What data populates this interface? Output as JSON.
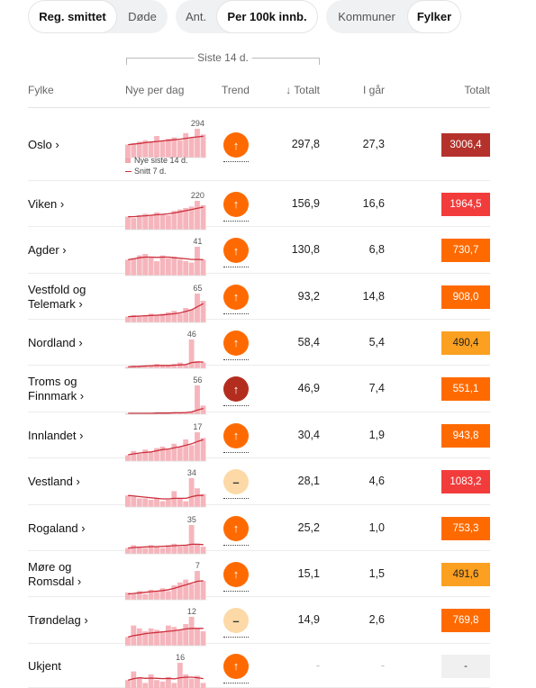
{
  "toggles": [
    {
      "options": [
        "Reg. smittet",
        "Døde"
      ],
      "active": 0,
      "widths": [
        99,
        56
      ]
    },
    {
      "options": [
        "Ant.",
        "Per 100k innb."
      ],
      "active": 1,
      "widths": [
        45,
        113
      ]
    },
    {
      "options": [
        "Kommuner",
        "Fylker"
      ],
      "active": 1,
      "widths": [
        90,
        60
      ]
    }
  ],
  "bracket_label": "Siste 14 d.",
  "headers": {
    "fylke": "Fylke",
    "nye": "Nye per dag",
    "trend": "Trend",
    "totalt_sort": "↓ Totalt",
    "igaar": "I går",
    "totalt": "Totalt"
  },
  "legend": {
    "bars": "Nye siste 14 d.",
    "line": "Snitt 7 d."
  },
  "trend_colors": {
    "up": "#ff6a00",
    "up_strong": "#b32d1f",
    "flat": "#fcd9a6"
  },
  "rows": [
    {
      "name": "Oslo ›",
      "max": 294,
      "trend": "up",
      "totalt": "297,8",
      "igaar": "27,3",
      "total": "3006,4",
      "total_color": "#b4322b",
      "bars": [
        0.45,
        0.5,
        0.55,
        0.6,
        0.55,
        0.75,
        0.6,
        0.65,
        0.7,
        0.6,
        0.85,
        0.7,
        1.0,
        0.8
      ],
      "line": [
        0.45,
        0.47,
        0.49,
        0.52,
        0.54,
        0.56,
        0.58,
        0.6,
        0.62,
        0.64,
        0.67,
        0.7,
        0.72,
        0.74
      ]
    },
    {
      "name": "Viken ›",
      "max": 220,
      "trend": "up",
      "totalt": "156,9",
      "igaar": "16,6",
      "total": "1964,5",
      "total_color": "#f23c3c",
      "bars": [
        0.45,
        0.4,
        0.5,
        0.55,
        0.5,
        0.6,
        0.55,
        0.5,
        0.65,
        0.7,
        0.75,
        0.8,
        1.0,
        0.85
      ],
      "line": [
        0.45,
        0.45,
        0.47,
        0.48,
        0.5,
        0.52,
        0.53,
        0.55,
        0.58,
        0.62,
        0.66,
        0.7,
        0.74,
        0.78
      ]
    },
    {
      "name": "Agder ›",
      "max": 41,
      "trend": "up",
      "totalt": "130,8",
      "igaar": "6,8",
      "total": "730,7",
      "total_color": "#ff6a00",
      "bars": [
        0.55,
        0.6,
        0.7,
        0.75,
        0.65,
        0.5,
        0.7,
        0.6,
        0.65,
        0.55,
        0.5,
        0.45,
        1.0,
        0.55
      ],
      "line": [
        0.55,
        0.58,
        0.62,
        0.64,
        0.64,
        0.63,
        0.64,
        0.64,
        0.62,
        0.6,
        0.58,
        0.56,
        0.56,
        0.55
      ]
    },
    {
      "name": "Vestfold og\nTelemark ›",
      "max": 65,
      "trend": "up",
      "totalt": "93,2",
      "igaar": "14,8",
      "total": "908,0",
      "total_color": "#ff6a00",
      "bars": [
        0.2,
        0.25,
        0.2,
        0.25,
        0.3,
        0.25,
        0.3,
        0.35,
        0.4,
        0.3,
        0.5,
        0.45,
        1.0,
        0.75
      ],
      "line": [
        0.2,
        0.21,
        0.22,
        0.23,
        0.24,
        0.25,
        0.26,
        0.28,
        0.3,
        0.33,
        0.38,
        0.44,
        0.55,
        0.65
      ]
    },
    {
      "name": "Nordland ›",
      "max": 46,
      "trend": "up",
      "totalt": "58,4",
      "igaar": "5,4",
      "total": "490,4",
      "total_color": "#fca021",
      "bars": [
        0.05,
        0.1,
        0.05,
        0.1,
        0.1,
        0.15,
        0.1,
        0.1,
        0.15,
        0.2,
        0.1,
        1.0,
        0.25,
        0.2
      ],
      "line": [
        0.05,
        0.06,
        0.07,
        0.08,
        0.09,
        0.1,
        0.1,
        0.1,
        0.11,
        0.12,
        0.13,
        0.2,
        0.22,
        0.22
      ]
    },
    {
      "name": "Troms og\nFinnmark ›",
      "max": 56,
      "trend": "up_strong",
      "totalt": "46,9",
      "igaar": "7,4",
      "total": "551,1",
      "total_color": "#ff6a00",
      "bars": [
        0.02,
        0.03,
        0.02,
        0.03,
        0.02,
        0.04,
        0.03,
        0.05,
        0.04,
        0.05,
        0.06,
        0.1,
        1.0,
        0.3
      ],
      "line": [
        0.03,
        0.03,
        0.03,
        0.03,
        0.03,
        0.04,
        0.04,
        0.04,
        0.05,
        0.05,
        0.06,
        0.08,
        0.15,
        0.2
      ]
    },
    {
      "name": "Innlandet ›",
      "max": 17,
      "trend": "up",
      "totalt": "30,4",
      "igaar": "1,9",
      "total": "943,8",
      "total_color": "#ff6a00",
      "bars": [
        0.2,
        0.35,
        0.25,
        0.4,
        0.3,
        0.45,
        0.5,
        0.4,
        0.6,
        0.5,
        0.75,
        0.55,
        1.0,
        0.8
      ],
      "line": [
        0.22,
        0.25,
        0.28,
        0.3,
        0.32,
        0.36,
        0.4,
        0.42,
        0.46,
        0.5,
        0.55,
        0.6,
        0.68,
        0.74
      ]
    },
    {
      "name": "Vestland ›",
      "max": 34,
      "trend": "flat",
      "totalt": "28,1",
      "igaar": "4,6",
      "total": "1083,2",
      "total_color": "#f23c3c",
      "bars": [
        0.4,
        0.35,
        0.3,
        0.3,
        0.25,
        0.3,
        0.2,
        0.25,
        0.55,
        0.3,
        0.2,
        1.0,
        0.65,
        0.45
      ],
      "line": [
        0.4,
        0.38,
        0.36,
        0.34,
        0.32,
        0.3,
        0.28,
        0.28,
        0.3,
        0.3,
        0.3,
        0.36,
        0.4,
        0.4
      ]
    },
    {
      "name": "Rogaland ›",
      "max": 35,
      "trend": "up",
      "totalt": "25,2",
      "igaar": "1,0",
      "total": "753,3",
      "total_color": "#ff6a00",
      "bars": [
        0.2,
        0.3,
        0.25,
        0.2,
        0.3,
        0.25,
        0.2,
        0.3,
        0.35,
        0.25,
        0.3,
        1.0,
        0.35,
        0.25
      ],
      "line": [
        0.2,
        0.22,
        0.23,
        0.24,
        0.25,
        0.25,
        0.26,
        0.27,
        0.28,
        0.29,
        0.3,
        0.33,
        0.33,
        0.32
      ]
    },
    {
      "name": "Møre og\nRomsdal ›",
      "max": 7,
      "trend": "up",
      "totalt": "15,1",
      "igaar": "1,5",
      "total": "491,6",
      "total_color": "#fca021",
      "bars": [
        0.25,
        0.2,
        0.3,
        0.2,
        0.35,
        0.3,
        0.4,
        0.3,
        0.5,
        0.6,
        0.7,
        0.55,
        1.0,
        0.65
      ],
      "line": [
        0.2,
        0.22,
        0.24,
        0.26,
        0.28,
        0.3,
        0.32,
        0.35,
        0.4,
        0.46,
        0.52,
        0.58,
        0.64,
        0.66
      ]
    },
    {
      "name": "Trøndelag ›",
      "max": 12,
      "trend": "flat",
      "totalt": "14,9",
      "igaar": "2,6",
      "total": "769,8",
      "total_color": "#ff6a00",
      "bars": [
        0.3,
        0.7,
        0.6,
        0.5,
        0.6,
        0.55,
        0.5,
        0.7,
        0.65,
        0.55,
        0.75,
        1.0,
        0.6,
        0.5
      ],
      "line": [
        0.3,
        0.35,
        0.38,
        0.42,
        0.44,
        0.46,
        0.48,
        0.5,
        0.52,
        0.55,
        0.58,
        0.6,
        0.6,
        0.6
      ]
    },
    {
      "name": "Ukjent",
      "max": 16,
      "trend": "up",
      "totalt": "-",
      "igaar": "-",
      "total": "-",
      "total_color": "#f0f0f0",
      "bars": [
        0.4,
        0.7,
        0.5,
        0.3,
        0.6,
        0.4,
        0.35,
        0.5,
        0.3,
        1.0,
        0.6,
        0.45,
        0.55,
        0.3
      ],
      "line": [
        0.4,
        0.45,
        0.48,
        0.46,
        0.47,
        0.46,
        0.45,
        0.46,
        0.44,
        0.48,
        0.5,
        0.5,
        0.48,
        0.45
      ]
    }
  ]
}
